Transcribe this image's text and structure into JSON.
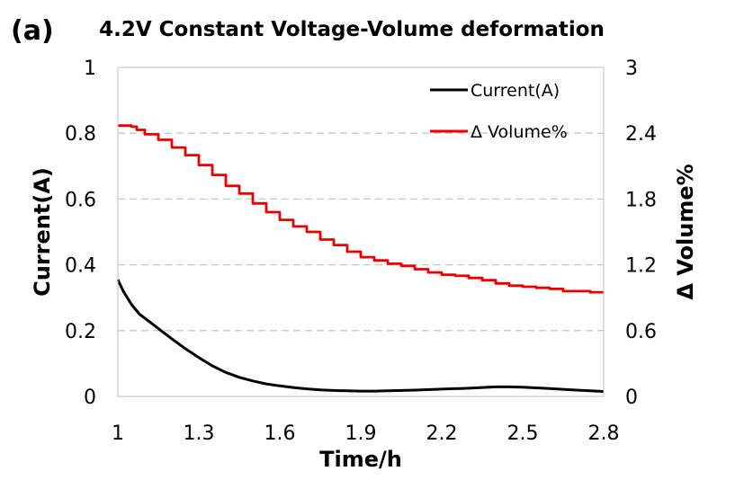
{
  "chart_data": {
    "type": "line",
    "panel_label": "(a)",
    "title": "4.2V Constant Voltage-Volume deformation",
    "xlabel": "Time/h",
    "ylabel_left": "Current(A)",
    "ylabel_right": "Δ Volume%",
    "xlim": [
      1,
      2.8
    ],
    "ylim_left": [
      0,
      1
    ],
    "ylim_right": [
      0,
      3
    ],
    "x_ticks": [
      "1",
      "1.3",
      "1.6",
      "1.9",
      "2.2",
      "2.5",
      "2.8"
    ],
    "y_left_ticks": [
      "0",
      "0.2",
      "0.4",
      "0.6",
      "0.8",
      "1"
    ],
    "y_right_ticks": [
      "0",
      "0.6",
      "1.2",
      "1.8",
      "2.4",
      "3"
    ],
    "grid": "horizontal dashed",
    "legend": {
      "position": "top-right",
      "entries": [
        "Current(A)",
        "Δ Volume%"
      ]
    },
    "series": [
      {
        "name": "Current(A)",
        "color": "#000000",
        "axis": "left",
        "x": [
          1.0,
          1.02,
          1.05,
          1.08,
          1.12,
          1.16,
          1.2,
          1.25,
          1.3,
          1.35,
          1.4,
          1.45,
          1.5,
          1.55,
          1.6,
          1.65,
          1.7,
          1.75,
          1.8,
          1.85,
          1.9,
          1.95,
          2.0,
          2.1,
          2.2,
          2.3,
          2.35,
          2.4,
          2.45,
          2.5,
          2.6,
          2.7,
          2.8
        ],
        "values": [
          0.355,
          0.32,
          0.28,
          0.25,
          0.225,
          0.2,
          0.175,
          0.145,
          0.118,
          0.093,
          0.073,
          0.058,
          0.047,
          0.038,
          0.032,
          0.027,
          0.023,
          0.02,
          0.018,
          0.017,
          0.016,
          0.016,
          0.017,
          0.019,
          0.022,
          0.025,
          0.027,
          0.029,
          0.029,
          0.028,
          0.024,
          0.019,
          0.015
        ]
      },
      {
        "name": "Δ Volume%",
        "color": "#ee0000",
        "axis": "right",
        "x": [
          1.0,
          1.02,
          1.05,
          1.07,
          1.1,
          1.15,
          1.2,
          1.25,
          1.3,
          1.35,
          1.4,
          1.45,
          1.5,
          1.55,
          1.6,
          1.65,
          1.7,
          1.75,
          1.8,
          1.85,
          1.9,
          1.95,
          2.0,
          2.05,
          2.1,
          2.15,
          2.2,
          2.25,
          2.3,
          2.35,
          2.4,
          2.45,
          2.5,
          2.55,
          2.6,
          2.65,
          2.7,
          2.75,
          2.8
        ],
        "values": [
          2.47,
          2.47,
          2.46,
          2.43,
          2.39,
          2.34,
          2.27,
          2.2,
          2.11,
          2.02,
          1.92,
          1.85,
          1.76,
          1.68,
          1.61,
          1.55,
          1.5,
          1.43,
          1.38,
          1.32,
          1.27,
          1.24,
          1.21,
          1.19,
          1.16,
          1.13,
          1.11,
          1.1,
          1.08,
          1.06,
          1.03,
          1.01,
          1.0,
          0.99,
          0.98,
          0.96,
          0.96,
          0.95,
          0.95
        ]
      }
    ]
  }
}
